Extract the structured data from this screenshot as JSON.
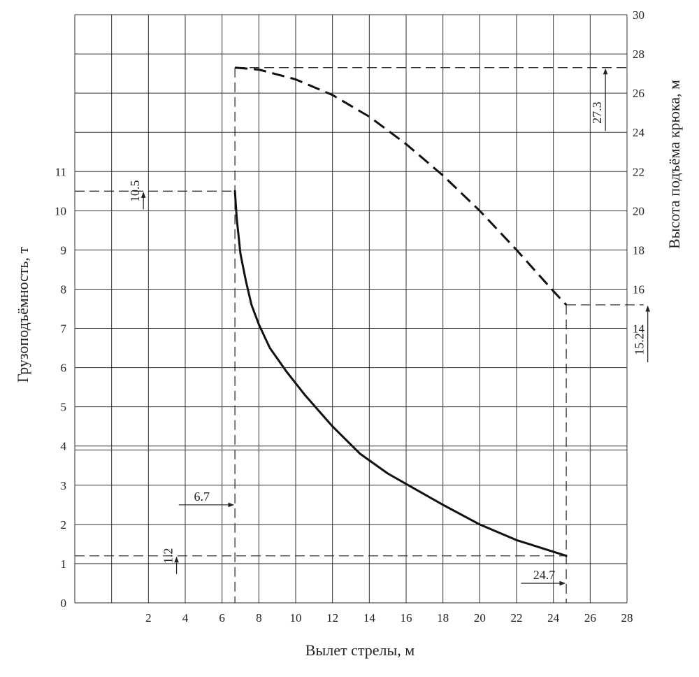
{
  "chart_data": {
    "type": "line",
    "xlabel": "Вылет стрелы, м",
    "ylabel_left": "Грузоподъёмность, т",
    "ylabel_right": "Высота подъёма крюка, м",
    "xlim": [
      -2,
      28
    ],
    "ylim_left": [
      0,
      15
    ],
    "ylim_right": [
      0,
      30
    ],
    "x_ticks": [
      "2",
      "4",
      "6",
      "8",
      "10",
      "12",
      "14",
      "16",
      "18",
      "20",
      "22",
      "24",
      "26",
      "28"
    ],
    "y_left_ticks": [
      "0",
      "1",
      "2",
      "3",
      "4",
      "5",
      "6",
      "7",
      "8",
      "9",
      "10",
      "11"
    ],
    "y_right_ticks": [
      "14",
      "16",
      "18",
      "20",
      "22",
      "24",
      "26",
      "28",
      "30"
    ],
    "grid": true,
    "series": [
      {
        "axis": "left",
        "style": "solid",
        "x": [
          6.7,
          6.8,
          7.0,
          7.3,
          7.6,
          8.0,
          8.6,
          9.5,
          10.5,
          12.0,
          13.5,
          15.0,
          16.5,
          18.0,
          20.0,
          22.0,
          24.7
        ],
        "y": [
          10.5,
          9.8,
          8.9,
          8.2,
          7.6,
          7.1,
          6.5,
          5.9,
          5.3,
          4.5,
          3.8,
          3.3,
          2.9,
          2.5,
          2.0,
          1.6,
          1.2
        ]
      },
      {
        "axis": "right",
        "style": "dashed",
        "x": [
          6.7,
          8.0,
          10.0,
          12.0,
          14.0,
          16.0,
          18.0,
          20.0,
          22.0,
          24.0,
          24.7
        ],
        "y": [
          27.3,
          27.2,
          26.7,
          25.9,
          24.8,
          23.4,
          21.8,
          20.0,
          18.0,
          15.9,
          15.2
        ]
      }
    ],
    "annotations": [
      {
        "text": "10.5",
        "axis": "left",
        "x": 1.5,
        "y": 10.5
      },
      {
        "text": "1.2",
        "axis": "left",
        "x": 3.3,
        "y": 1.2
      },
      {
        "text": "6.7",
        "axis": "left",
        "x": 4.9,
        "y": 2.5
      },
      {
        "text": "24.7",
        "axis": "left",
        "x": 23.5,
        "y": 0.5
      },
      {
        "text": "27.3",
        "axis": "right",
        "x": 26.6,
        "y": 25.0
      },
      {
        "text": "15.2",
        "axis": "right",
        "x": 28.9,
        "y": 13.2
      }
    ]
  }
}
